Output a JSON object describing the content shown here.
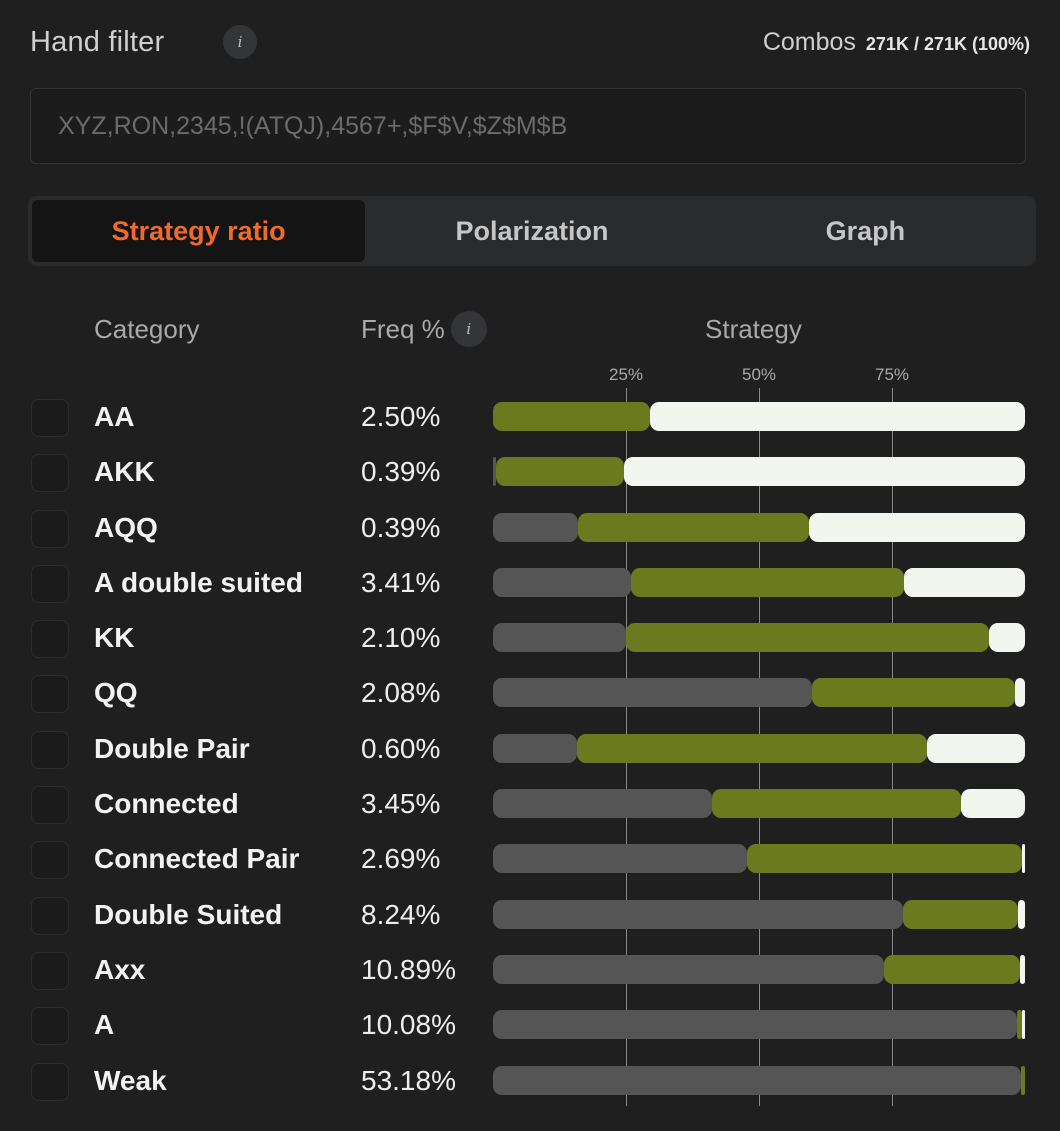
{
  "header": {
    "title": "Hand filter",
    "info_glyph": "i",
    "combos_label": "Combos",
    "combos_value": "271K / 271K (100%)"
  },
  "filter": {
    "placeholder": "XYZ,RON,2345,!(ATQJ),4567+,$F$V,$Z$M$B"
  },
  "tabs": [
    {
      "label": "Strategy ratio",
      "active": true
    },
    {
      "label": "Polarization",
      "active": false
    },
    {
      "label": "Graph",
      "active": false
    }
  ],
  "columns": {
    "category": "Category",
    "freq": "Freq %",
    "strategy": "Strategy"
  },
  "ticks": [
    {
      "label": "25%",
      "value": 25
    },
    {
      "label": "50%",
      "value": 50
    },
    {
      "label": "75%",
      "value": 75
    }
  ],
  "colors": {
    "accent": "#f06a2a",
    "fold": "#555555",
    "call": "#6b7a1f",
    "raise": "#f2f6ee"
  },
  "rows": [
    {
      "category": "AA",
      "freq": "2.50%",
      "strategy": [
        0,
        29.6,
        70.4
      ]
    },
    {
      "category": "AKK",
      "freq": "0.39%",
      "strategy": [
        0.2,
        24.2,
        75.6
      ]
    },
    {
      "category": "AQQ",
      "freq": "0.39%",
      "strategy": [
        16.0,
        43.4,
        40.6
      ]
    },
    {
      "category": "A double suited",
      "freq": "3.41%",
      "strategy": [
        25.9,
        51.3,
        22.8
      ]
    },
    {
      "category": "KK",
      "freq": "2.10%",
      "strategy": [
        25.0,
        68.3,
        6.7
      ]
    },
    {
      "category": "QQ",
      "freq": "2.08%",
      "strategy": [
        60.0,
        38.2,
        1.8
      ]
    },
    {
      "category": "Double Pair",
      "freq": "0.60%",
      "strategy": [
        15.8,
        65.8,
        18.4
      ]
    },
    {
      "category": "Connected",
      "freq": "3.45%",
      "strategy": [
        41.2,
        46.8,
        12.0
      ]
    },
    {
      "category": "Connected Pair",
      "freq": "2.69%",
      "strategy": [
        47.9,
        51.7,
        0.4
      ]
    },
    {
      "category": "Double Suited",
      "freq": "8.24%",
      "strategy": [
        77.1,
        21.6,
        1.3
      ]
    },
    {
      "category": "Axx",
      "freq": "10.89%",
      "strategy": [
        73.5,
        25.6,
        0.9
      ]
    },
    {
      "category": "A",
      "freq": "10.08%",
      "strategy": [
        98.8,
        0.9,
        0.3
      ]
    },
    {
      "category": "Weak",
      "freq": "53.18%",
      "strategy": [
        99.2,
        0.8,
        0
      ]
    }
  ]
}
